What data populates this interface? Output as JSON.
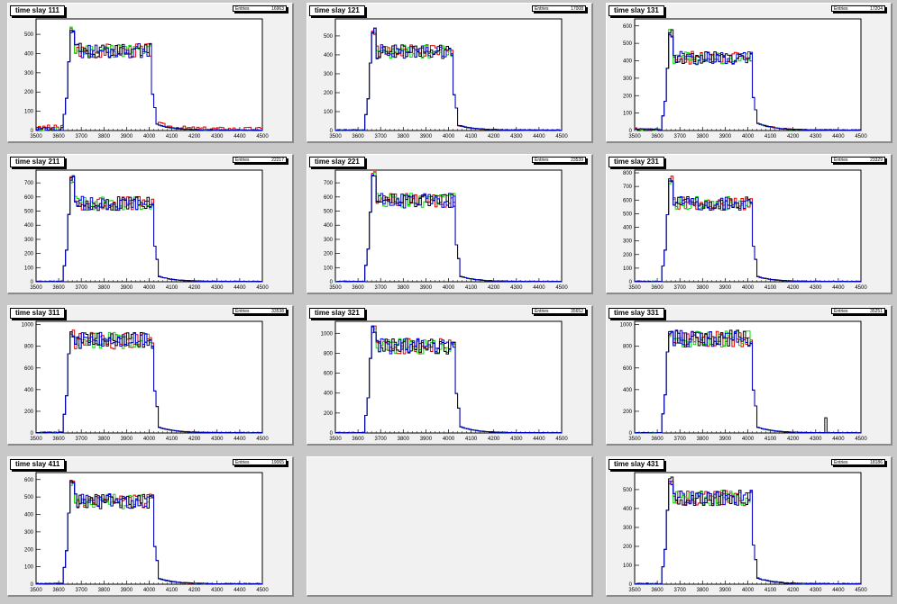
{
  "canvas": {
    "background": "#c8c8c8"
  },
  "colors": {
    "black": "#000000",
    "red": "#dd0000",
    "green": "#00dd00",
    "blue": "#0000cc"
  },
  "stats_label": "Entries",
  "chart_data": [
    {
      "type": "histogram",
      "title": "time slay 111",
      "entries": "16963",
      "xlim": [
        3500,
        4500
      ],
      "ylim": [
        0,
        580
      ],
      "xticks": [
        3500,
        3600,
        3700,
        3800,
        3900,
        4000,
        4100,
        4200,
        4300,
        4400,
        4500
      ],
      "yticks": [
        100,
        200,
        300,
        400,
        500
      ],
      "profile": {
        "baseline": [
          0,
          2,
          8,
          15
        ],
        "plateau": 420,
        "start": 3640,
        "end": 4010,
        "peak": 540,
        "tail": 30,
        "noise_red": 18
      }
    },
    {
      "type": "histogram",
      "title": "time slay 121",
      "entries": "17008",
      "xlim": [
        3500,
        4500
      ],
      "ylim": [
        0,
        590
      ],
      "xticks": [
        3500,
        3600,
        3700,
        3800,
        3900,
        4000,
        4100,
        4200,
        4300,
        4400,
        4500
      ],
      "yticks": [
        100,
        200,
        300,
        400,
        500
      ],
      "profile": {
        "baseline": [
          0,
          1,
          2,
          4
        ],
        "plateau": 420,
        "start": 3650,
        "end": 4020,
        "peak": 550,
        "tail": 25,
        "noise_red": 3
      }
    },
    {
      "type": "histogram",
      "title": "time slay 131",
      "entries": "17204",
      "xlim": [
        3500,
        4500
      ],
      "ylim": [
        0,
        640
      ],
      "xticks": [
        3500,
        3600,
        3700,
        3800,
        3900,
        4000,
        4100,
        4200,
        4300,
        4400,
        4500
      ],
      "yticks": [
        100,
        200,
        300,
        400,
        500,
        600
      ],
      "profile": {
        "baseline": [
          0,
          4,
          8,
          10
        ],
        "plateau": 420,
        "start": 3640,
        "end": 4020,
        "peak": 580,
        "tail": 40,
        "noise_red": 6
      }
    },
    {
      "type": "histogram",
      "title": "time slay 211",
      "entries": "22217",
      "xlim": [
        3500,
        4500
      ],
      "ylim": [
        0,
        790
      ],
      "xticks": [
        3500,
        3600,
        3700,
        3800,
        3900,
        4000,
        4100,
        4200,
        4300,
        4400,
        4500
      ],
      "yticks": [
        100,
        200,
        300,
        400,
        500,
        600,
        700
      ],
      "profile": {
        "baseline": [
          0,
          1,
          2,
          4
        ],
        "plateau": 560,
        "start": 3640,
        "end": 4020,
        "peak": 760,
        "tail": 35,
        "noise_red": 3
      }
    },
    {
      "type": "histogram",
      "title": "time slay 221",
      "entries": "23539",
      "xlim": [
        3500,
        4500
      ],
      "ylim": [
        0,
        790
      ],
      "xticks": [
        3500,
        3600,
        3700,
        3800,
        3900,
        4000,
        4100,
        4200,
        4300,
        4400,
        4500
      ],
      "yticks": [
        100,
        200,
        300,
        400,
        500,
        600,
        700
      ],
      "profile": {
        "baseline": [
          0,
          1,
          2,
          3
        ],
        "plateau": 580,
        "start": 3650,
        "end": 4030,
        "peak": 780,
        "tail": 35,
        "noise_red": 3
      }
    },
    {
      "type": "histogram",
      "title": "time slay 231",
      "entries": "23329",
      "xlim": [
        3500,
        4500
      ],
      "ylim": [
        0,
        820
      ],
      "xticks": [
        3500,
        3600,
        3700,
        3800,
        3900,
        4000,
        4100,
        4200,
        4300,
        4400,
        4500
      ],
      "yticks": [
        100,
        200,
        300,
        400,
        500,
        600,
        700,
        800
      ],
      "profile": {
        "baseline": [
          0,
          1,
          2,
          4
        ],
        "plateau": 580,
        "start": 3640,
        "end": 4020,
        "peak": 780,
        "tail": 35,
        "noise_red": 3
      }
    },
    {
      "type": "histogram",
      "title": "time slay 311",
      "entries": "33538",
      "xlim": [
        3500,
        4500
      ],
      "ylim": [
        0,
        1030
      ],
      "xticks": [
        3500,
        3600,
        3700,
        3800,
        3900,
        4000,
        4100,
        4200,
        4300,
        4400,
        4500
      ],
      "yticks": [
        200,
        400,
        600,
        800,
        1000
      ],
      "profile": {
        "baseline": [
          0,
          2,
          4,
          8
        ],
        "plateau": 860,
        "start": 3640,
        "end": 4020,
        "peak": 960,
        "tail": 50,
        "noise_red": 6
      }
    },
    {
      "type": "histogram",
      "title": "time slay 321",
      "entries": "35652",
      "xlim": [
        3500,
        4500
      ],
      "ylim": [
        0,
        1120
      ],
      "xticks": [
        3500,
        3600,
        3700,
        3800,
        3900,
        4000,
        4100,
        4200,
        4300,
        4400,
        4500
      ],
      "yticks": [
        200,
        400,
        600,
        800,
        1000
      ],
      "profile": {
        "baseline": [
          0,
          1,
          2,
          4
        ],
        "plateau": 880,
        "start": 3650,
        "end": 4030,
        "peak": 1080,
        "tail": 60,
        "noise_red": 3
      }
    },
    {
      "type": "histogram",
      "title": "time slay 331",
      "entries": "35251",
      "xlim": [
        3500,
        4500
      ],
      "ylim": [
        0,
        1030
      ],
      "xticks": [
        3500,
        3600,
        3700,
        3800,
        3900,
        4000,
        4100,
        4200,
        4300,
        4400,
        4500
      ],
      "yticks": [
        200,
        400,
        600,
        800,
        1000
      ],
      "profile": {
        "baseline": [
          0,
          1,
          2,
          4
        ],
        "plateau": 880,
        "start": 3640,
        "end": 4020,
        "peak": 960,
        "tail": 50,
        "noise_red": 3,
        "spike": [
          4340,
          140
        ]
      }
    },
    {
      "type": "histogram",
      "title": "time slay 411",
      "entries": "19065",
      "xlim": [
        3500,
        4500
      ],
      "ylim": [
        0,
        640
      ],
      "xticks": [
        3500,
        3600,
        3700,
        3800,
        3900,
        4000,
        4100,
        4200,
        4300,
        4400,
        4500
      ],
      "yticks": [
        100,
        200,
        300,
        400,
        500,
        600
      ],
      "profile": {
        "baseline": [
          0,
          1,
          2,
          4
        ],
        "plateau": 480,
        "start": 3640,
        "end": 4020,
        "peak": 610,
        "tail": 30,
        "noise_red": 3
      }
    },
    null,
    {
      "type": "histogram",
      "title": "time slay 431",
      "entries": "18186",
      "xlim": [
        3500,
        4500
      ],
      "ylim": [
        0,
        590
      ],
      "xticks": [
        3500,
        3600,
        3700,
        3800,
        3900,
        4000,
        4100,
        4200,
        4300,
        4400,
        4500
      ],
      "yticks": [
        100,
        200,
        300,
        400,
        500
      ],
      "profile": {
        "baseline": [
          0,
          1,
          2,
          4
        ],
        "plateau": 460,
        "start": 3640,
        "end": 4020,
        "peak": 570,
        "tail": 30,
        "noise_red": 3
      }
    }
  ]
}
